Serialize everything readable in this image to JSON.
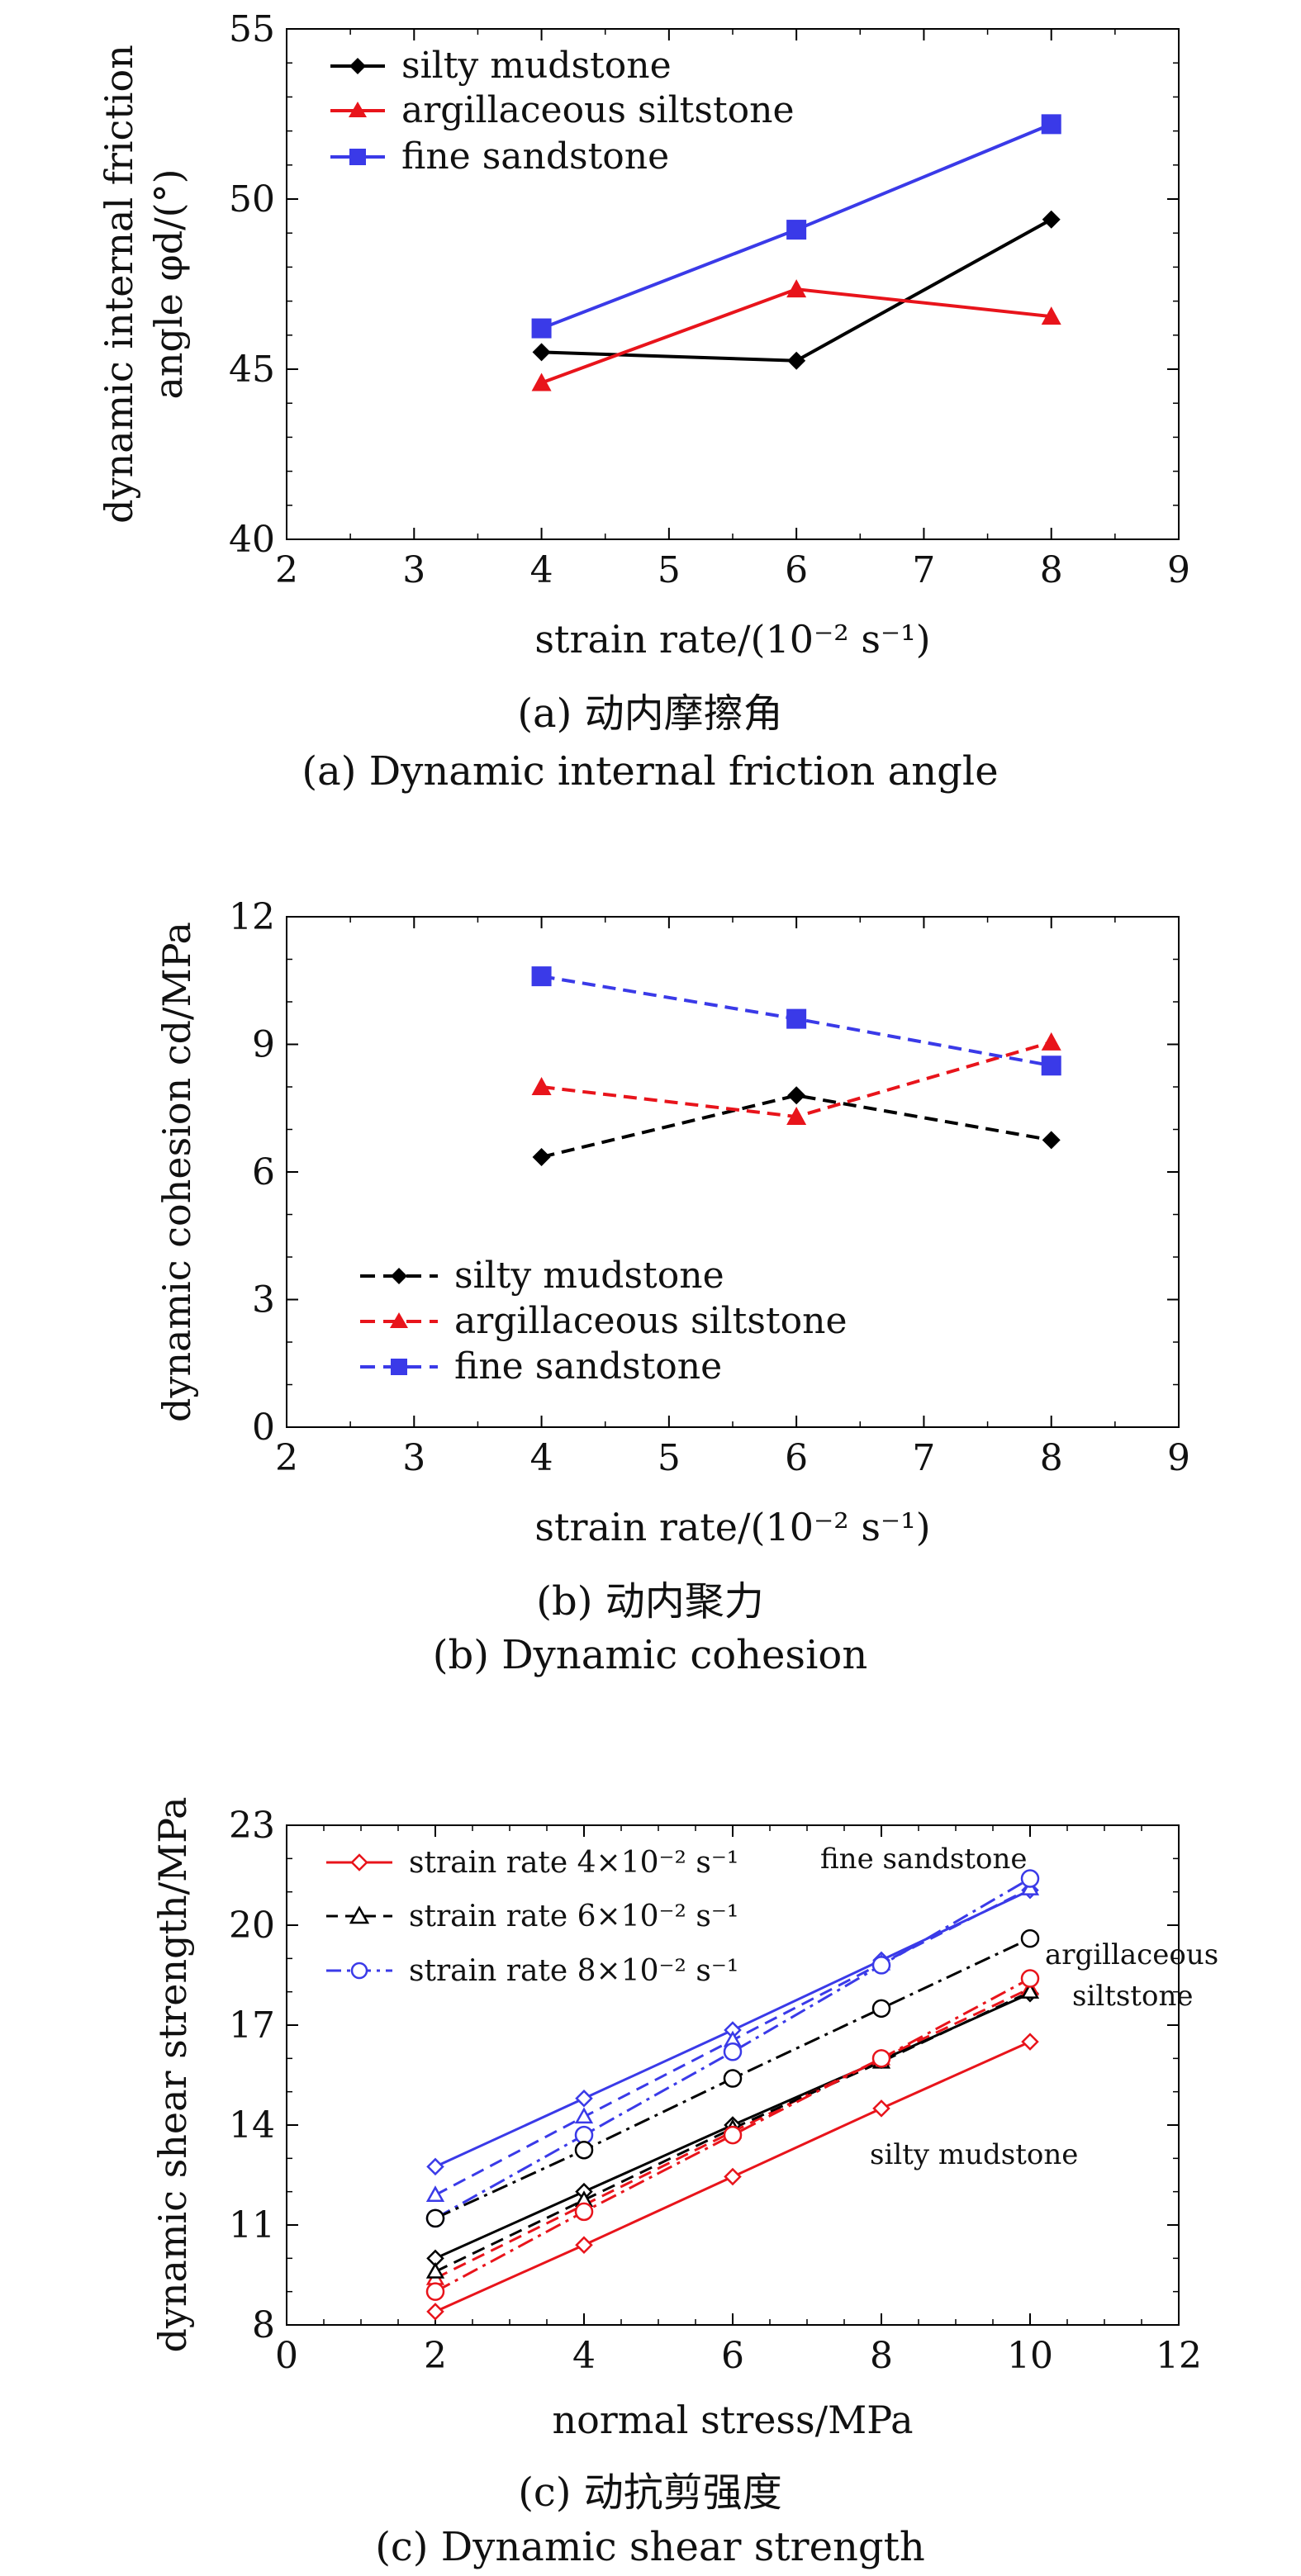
{
  "colors": {
    "black": "#000000",
    "red": "#e8141b",
    "blue": "#3a3ae8"
  },
  "chart_data": [
    {
      "type": "line",
      "title": "",
      "xlabel": "strain rate/(10⁻² s⁻¹)",
      "ylabel_line1": "dynamic internal friction",
      "ylabel_line2": "angle φd/(°)",
      "xlim": [
        2,
        9
      ],
      "ylim": [
        40,
        55
      ],
      "xticks": [
        "2",
        "3",
        "4",
        "5",
        "6",
        "7",
        "8",
        "9"
      ],
      "yticks": [
        "40",
        "45",
        "50",
        "55"
      ],
      "x": [
        4,
        6,
        8
      ],
      "series": [
        {
          "name": "silty mudstone",
          "values": [
            45.5,
            45.25,
            49.4
          ],
          "color": "#000000",
          "marker": "diamond",
          "dash": "solid"
        },
        {
          "name": "argillaceous siltstone",
          "values": [
            44.6,
            47.35,
            46.55
          ],
          "color": "#e8141b",
          "marker": "triangle",
          "dash": "solid"
        },
        {
          "name": "fine sandstone",
          "values": [
            46.2,
            49.1,
            52.2
          ],
          "color": "#3a3ae8",
          "marker": "square",
          "dash": "solid"
        }
      ],
      "caption_cn": "(a) 动内摩擦角",
      "caption_en": "(a) Dynamic internal friction angle"
    },
    {
      "type": "line",
      "title": "",
      "xlabel": "strain rate/(10⁻² s⁻¹)",
      "ylabel": "dynamic cohesion cd/MPa",
      "xlim": [
        2,
        9
      ],
      "ylim": [
        0,
        12
      ],
      "xticks": [
        "2",
        "3",
        "4",
        "5",
        "6",
        "7",
        "8",
        "9"
      ],
      "yticks": [
        "0",
        "3",
        "6",
        "9",
        "12"
      ],
      "x": [
        4,
        6,
        8
      ],
      "series": [
        {
          "name": "silty mudstone",
          "values": [
            6.35,
            7.8,
            6.75
          ],
          "color": "#000000",
          "marker": "diamond",
          "dash": "dashed"
        },
        {
          "name": "argillaceous siltstone",
          "values": [
            8.0,
            7.3,
            9.05
          ],
          "color": "#e8141b",
          "marker": "triangle",
          "dash": "dashed"
        },
        {
          "name": "fine sandstone",
          "values": [
            10.6,
            9.6,
            8.5
          ],
          "color": "#3a3ae8",
          "marker": "square",
          "dash": "dashed"
        }
      ],
      "caption_cn": "(b) 动内聚力",
      "caption_en": "(b) Dynamic cohesion"
    },
    {
      "type": "line",
      "title": "",
      "xlabel": "normal stress/MPa",
      "ylabel": "dynamic shear strength/MPa",
      "xlim": [
        0,
        12
      ],
      "ylim": [
        8,
        23
      ],
      "xticks": [
        "0",
        "2",
        "4",
        "6",
        "8",
        "10",
        "12"
      ],
      "yticks": [
        "8",
        "11",
        "14",
        "17",
        "20",
        "23"
      ],
      "x": [
        2,
        4,
        6,
        8,
        10
      ],
      "legend": [
        {
          "label": "strain rate 4×10⁻² s⁻¹",
          "color": "#e8141b",
          "marker": "diamond-open",
          "dash": "solid"
        },
        {
          "label": "strain rate 6×10⁻² s⁻¹",
          "color": "#000000",
          "marker": "triangle-open",
          "dash": "dashed"
        },
        {
          "label": "strain rate 8×10⁻² s⁻¹",
          "color": "#3a3ae8",
          "marker": "circle-open",
          "dash": "dashdot"
        }
      ],
      "series": [
        {
          "name": "silty mudstone, 4×10⁻² s⁻¹",
          "values": [
            8.4,
            10.4,
            12.45,
            14.5,
            16.5
          ],
          "color": "#e8141b",
          "marker": "diamond-open",
          "dash": "solid"
        },
        {
          "name": "silty mudstone, 6×10⁻² s⁻¹",
          "values": [
            10.0,
            12.0,
            14.0,
            15.95,
            17.95
          ],
          "color": "#000000",
          "marker": "diamond-open",
          "dash": "solid"
        },
        {
          "name": "argillaceous siltstone, 4×10⁻² s⁻¹",
          "values": [
            9.4,
            11.6,
            13.8,
            16.0,
            18.1
          ],
          "color": "#e8141b",
          "marker": "triangle-open",
          "dash": "dashed"
        },
        {
          "name": "argillaceous siltstone, 6×10⁻² s⁻¹",
          "values": [
            9.6,
            11.75,
            13.9,
            15.9,
            18.0
          ],
          "color": "#000000",
          "marker": "triangle-open",
          "dash": "dashed"
        },
        {
          "name": "argillaceous siltstone, 8×10⁻² s⁻¹",
          "values": [
            9.0,
            11.4,
            13.7,
            16.0,
            18.4
          ],
          "color": "#e8141b",
          "marker": "circle-open",
          "dash": "dashdot"
        },
        {
          "name": "fine sandstone, 4×10⁻² s⁻¹",
          "values": [
            12.75,
            14.8,
            16.85,
            18.95,
            21.05
          ],
          "color": "#3a3ae8",
          "marker": "diamond-open",
          "dash": "solid"
        },
        {
          "name": "fine sandstone, 6×10⁻² s⁻¹",
          "values": [
            11.9,
            14.25,
            16.55,
            18.85,
            21.1
          ],
          "color": "#3a3ae8",
          "marker": "triangle-open",
          "dash": "dashed"
        },
        {
          "name": "fine sandstone, 8×10⁻² s⁻¹",
          "values": [
            11.2,
            13.7,
            16.2,
            18.8,
            21.4
          ],
          "color": "#3a3ae8",
          "marker": "circle-open",
          "dash": "dashdot"
        },
        {
          "name": "8×10⁻² s⁻¹ (black)",
          "values": [
            11.2,
            13.25,
            15.4,
            17.5,
            19.6
          ],
          "color": "#000000",
          "marker": "circle-open",
          "dash": "dashdot"
        }
      ],
      "annotations": [
        "fine sandstone",
        "argillaceous",
        "siltstone",
        "silty mudstone"
      ],
      "caption_cn": "(c) 动抗剪强度",
      "caption_en": "(c) Dynamic shear strength"
    }
  ]
}
